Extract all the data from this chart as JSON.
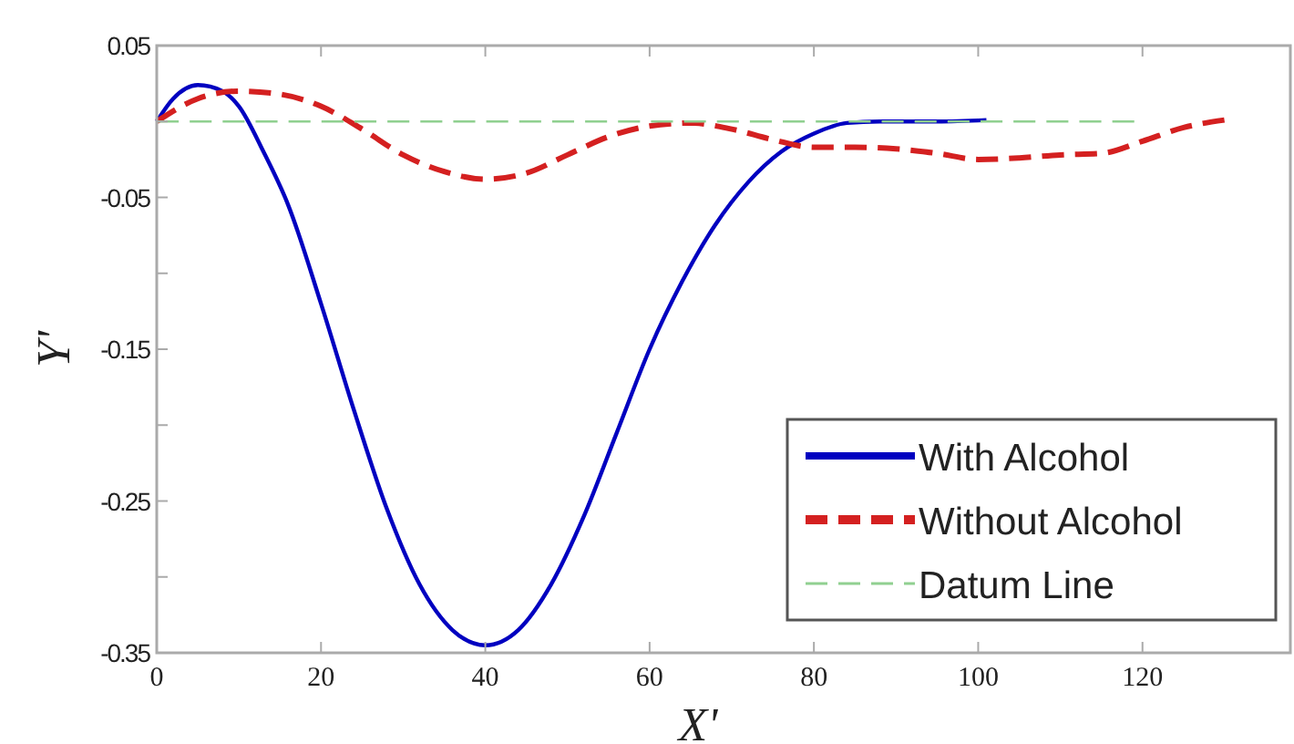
{
  "chart_data": {
    "type": "line",
    "xlabel": "X'",
    "ylabel": "Y'",
    "xlim": [
      0,
      138
    ],
    "ylim": [
      -0.35,
      0.05
    ],
    "xticks": [
      0,
      20,
      40,
      60,
      80,
      100,
      120
    ],
    "yticks": [
      0.05,
      {
        "value": 0,
        "label": null
      },
      -0.05,
      {
        "value": -0.1,
        "label": null
      },
      -0.15,
      {
        "value": -0.2,
        "label": null
      },
      -0.25,
      {
        "value": -0.3,
        "label": null
      },
      -0.35
    ],
    "grid": false,
    "legend": "bottom right",
    "series": [
      {
        "name": "With Alcohol",
        "color": "#0000c0",
        "line_style": "solid",
        "x": [
          0,
          2,
          5,
          8,
          10,
          13,
          16,
          20,
          24,
          28,
          32,
          36,
          40,
          44,
          48,
          52,
          56,
          60,
          64,
          68,
          72,
          76,
          80,
          84,
          88,
          95,
          101
        ],
        "values": [
          0,
          0.015,
          0.024,
          0.02,
          0.01,
          -0.02,
          -0.055,
          -0.12,
          -0.19,
          -0.255,
          -0.305,
          -0.335,
          -0.345,
          -0.335,
          -0.305,
          -0.26,
          -0.205,
          -0.15,
          -0.105,
          -0.068,
          -0.04,
          -0.02,
          -0.008,
          -0.001,
          0,
          0,
          0.001
        ]
      },
      {
        "name": "Without Alcohol",
        "color": "#d42020",
        "line_style": "dashed",
        "x": [
          0,
          5,
          10,
          15,
          20,
          25,
          30,
          35,
          40,
          45,
          50,
          55,
          60,
          65,
          70,
          75,
          80,
          85,
          90,
          95,
          100,
          105,
          110,
          115,
          120,
          125,
          130
        ],
        "values": [
          0,
          0.015,
          0.02,
          0.018,
          0.01,
          -0.005,
          -0.022,
          -0.033,
          -0.038,
          -0.034,
          -0.022,
          -0.01,
          -0.003,
          -0.001,
          -0.005,
          -0.012,
          -0.017,
          -0.017,
          -0.018,
          -0.021,
          -0.025,
          -0.024,
          -0.022,
          -0.021,
          -0.013,
          -0.004,
          0.001
        ]
      },
      {
        "name": "Datum Line",
        "color": "#90d090",
        "line_style": "dashed",
        "x": [
          0,
          119
        ],
        "values": [
          0,
          0
        ]
      }
    ]
  }
}
